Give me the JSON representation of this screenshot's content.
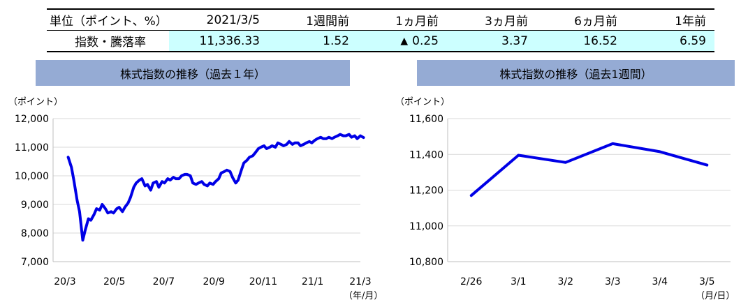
{
  "table": {
    "headers": [
      "単位（ポイント、%）",
      "2021/3/5",
      "1週間前",
      "1ヵ月前",
      "3ヵ月前",
      "6ヵ月前",
      "1年前"
    ],
    "row_label": "指数・騰落率",
    "values": [
      "11,336.33",
      "1.52",
      "0.25",
      "3.37",
      "16.52",
      "6.59"
    ],
    "negative_marker": "▲"
  },
  "colors": {
    "line": "#0000e6",
    "banner": "#95abd4",
    "highlight": "#ccffff",
    "grid": "#d9d9d9"
  },
  "chart_data": [
    {
      "type": "line",
      "title": "株式指数の推移（過去１年）",
      "ylabel": "（ポイント）",
      "xunit": "（年/月）",
      "ylim": [
        7000,
        12000
      ],
      "yticks": [
        "12,000",
        "11,000",
        "10,000",
        "9,000",
        "8,000",
        "7,000"
      ],
      "xticks": [
        "20/3",
        "20/5",
        "20/7",
        "20/9",
        "20/11",
        "21/1",
        "21/3"
      ],
      "grid": true,
      "series": [
        {
          "x": [
            "2020/03/05",
            "2020/03/09",
            "2020/03/12",
            "2020/03/16",
            "2020/03/19",
            "2020/03/23",
            "2020/03/26",
            "2020/03/30",
            "2020/04/02",
            "2020/04/06",
            "2020/04/09",
            "2020/04/13",
            "2020/04/16",
            "2020/04/20",
            "2020/04/23",
            "2020/04/27",
            "2020/04/30",
            "2020/05/04",
            "2020/05/07",
            "2020/05/11",
            "2020/05/14",
            "2020/05/18",
            "2020/05/21",
            "2020/05/25",
            "2020/05/28",
            "2020/06/01",
            "2020/06/04",
            "2020/06/08",
            "2020/06/11",
            "2020/06/15",
            "2020/06/18",
            "2020/06/22",
            "2020/06/25",
            "2020/06/29",
            "2020/07/02",
            "2020/07/06",
            "2020/07/09",
            "2020/07/13",
            "2020/07/16",
            "2020/07/20",
            "2020/07/23",
            "2020/07/27",
            "2020/07/30",
            "2020/08/03",
            "2020/08/06",
            "2020/08/10",
            "2020/08/13",
            "2020/08/17",
            "2020/08/20",
            "2020/08/24",
            "2020/08/27",
            "2020/08/31",
            "2020/09/03",
            "2020/09/07",
            "2020/09/10",
            "2020/09/14",
            "2020/09/17",
            "2020/09/21",
            "2020/09/24",
            "2020/09/28",
            "2020/10/01",
            "2020/10/05",
            "2020/10/08",
            "2020/10/12",
            "2020/10/15",
            "2020/10/19",
            "2020/10/22",
            "2020/10/26",
            "2020/10/29",
            "2020/11/02",
            "2020/11/05",
            "2020/11/09",
            "2020/11/12",
            "2020/11/16",
            "2020/11/19",
            "2020/11/23",
            "2020/11/26",
            "2020/11/30",
            "2020/12/03",
            "2020/12/07",
            "2020/12/10",
            "2020/12/14",
            "2020/12/17",
            "2020/12/21",
            "2020/12/24",
            "2020/12/28",
            "2020/12/31",
            "2021/01/04",
            "2021/01/07",
            "2021/01/11",
            "2021/01/14",
            "2021/01/18",
            "2021/01/21",
            "2021/01/25",
            "2021/01/28",
            "2021/02/01",
            "2021/02/04",
            "2021/02/08",
            "2021/02/11",
            "2021/02/15",
            "2021/02/18",
            "2021/02/22",
            "2021/02/25",
            "2021/03/01",
            "2021/03/05"
          ],
          "values": [
            10650,
            10300,
            9850,
            9150,
            8750,
            7750,
            8100,
            8500,
            8450,
            8650,
            8850,
            8800,
            9000,
            8850,
            8700,
            8750,
            8700,
            8850,
            8900,
            8750,
            8900,
            9050,
            9250,
            9600,
            9750,
            9850,
            9900,
            9650,
            9700,
            9500,
            9750,
            9800,
            9600,
            9800,
            9750,
            9900,
            9850,
            9950,
            9900,
            9900,
            10000,
            10050,
            10050,
            10000,
            9750,
            9700,
            9750,
            9800,
            9700,
            9650,
            9750,
            9700,
            9800,
            9900,
            10100,
            10150,
            10200,
            10150,
            9950,
            9750,
            9850,
            10200,
            10450,
            10550,
            10650,
            10700,
            10800,
            10950,
            11000,
            11050,
            10950,
            11000,
            11050,
            11000,
            11150,
            11100,
            11050,
            11100,
            11200,
            11100,
            11150,
            11150,
            11050,
            11100,
            11150,
            11200,
            11150,
            11250,
            11300,
            11350,
            11300,
            11300,
            11350,
            11300,
            11350,
            11400,
            11450,
            11400,
            11400,
            11450,
            11350,
            11400,
            11300,
            11400,
            11340
          ]
        }
      ]
    },
    {
      "type": "line",
      "title": "株式指数の推移（過去1週間）",
      "ylabel": "（ポイント）",
      "xunit": "（月/日）",
      "ylim": [
        10800,
        11600
      ],
      "yticks": [
        "11,600",
        "11,400",
        "11,200",
        "11,000",
        "10,800"
      ],
      "categories": [
        "2/26",
        "3/1",
        "3/2",
        "3/3",
        "3/4",
        "3/5"
      ],
      "grid": true,
      "series": [
        {
          "values": [
            11170,
            11395,
            11355,
            11460,
            11415,
            11340
          ]
        }
      ]
    }
  ]
}
